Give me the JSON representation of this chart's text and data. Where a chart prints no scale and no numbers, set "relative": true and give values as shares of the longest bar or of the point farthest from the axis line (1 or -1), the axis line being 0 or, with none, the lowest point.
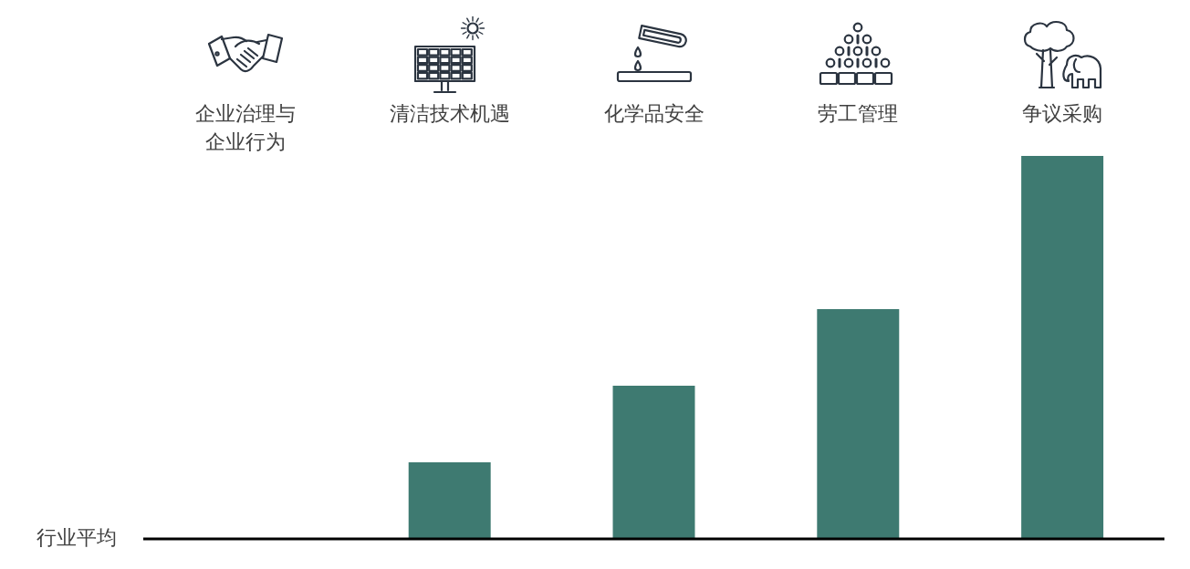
{
  "chart_data": {
    "type": "bar",
    "categories": [
      "企业治理与企业行为",
      "清洁技术机遇",
      "化学品安全",
      "劳工管理",
      "争议采购"
    ],
    "values": [
      0,
      0.2,
      0.4,
      0.6,
      1
    ],
    "color": "#3e7a71",
    "relative": true,
    "ref_lines": [
      {
        "axis": "y",
        "value": 0,
        "label": "行业平均",
        "color": "#000000"
      }
    ]
  }
}
